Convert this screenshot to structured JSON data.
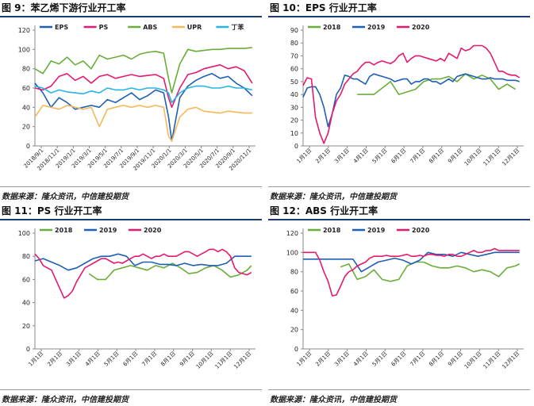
{
  "figures": [
    {
      "title": "图 9：苯乙烯下游行业开工率",
      "source": "数据来源：隆众资讯，中信建投期货"
    },
    {
      "title": "图 10：EPS 行业开工率",
      "source": "数据来源：隆众资讯，中信建投期货"
    },
    {
      "title": "图 11：PS 行业开工率",
      "source": "数据来源：隆众资讯，中信建投期货"
    },
    {
      "title": "图 12：ABS 行业开工率",
      "source": "数据来源：隆众资讯，中信建投期货"
    }
  ],
  "chart_data": [
    {
      "type": "line",
      "ylim": [
        0,
        120
      ],
      "yticks": [
        0,
        20,
        40,
        60,
        80,
        100,
        120
      ],
      "xlim": [
        0,
        27.4
      ],
      "x_ticks": [
        "2018/9/1",
        "2018/11/1",
        "2019/1/1",
        "2019/3/1",
        "2019/5/1",
        "2019/7/1",
        "2019/9/1",
        "2019/11/1",
        "2020/1/1",
        "2020/3/1",
        "2020/5/1",
        "2020/7/1",
        "2020/9/1",
        "2020/11/1"
      ],
      "legend_position": "top",
      "grid": false,
      "series": [
        {
          "name": "EPS",
          "color": "#1f5fb4",
          "x": [
            0,
            1,
            2,
            3,
            4,
            5,
            6,
            7,
            8,
            9,
            10,
            11,
            12,
            13,
            14,
            15,
            16,
            16.6,
            17,
            18,
            19,
            20,
            21,
            22,
            23,
            24,
            25,
            26,
            27
          ],
          "y": [
            65,
            55,
            40,
            50,
            45,
            38,
            40,
            42,
            40,
            48,
            45,
            50,
            55,
            48,
            52,
            58,
            55,
            30,
            5,
            50,
            62,
            68,
            72,
            75,
            70,
            72,
            65,
            60,
            52
          ]
        },
        {
          "name": "PS",
          "color": "#e6196f",
          "x": [
            0,
            1,
            2,
            3,
            4,
            5,
            6,
            7,
            8,
            9,
            10,
            11,
            12,
            13,
            14,
            15,
            16,
            16.6,
            17,
            18,
            19,
            20,
            21,
            22,
            23,
            24,
            25,
            26,
            27
          ],
          "y": [
            60,
            58,
            62,
            72,
            75,
            68,
            72,
            65,
            72,
            74,
            70,
            72,
            74,
            72,
            73,
            74,
            70,
            50,
            40,
            60,
            74,
            76,
            80,
            82,
            84,
            80,
            82,
            78,
            65
          ]
        },
        {
          "name": "ABS",
          "color": "#6aad39",
          "x": [
            0,
            1,
            2,
            3,
            4,
            5,
            6,
            7,
            8,
            9,
            10,
            11,
            12,
            13,
            14,
            15,
            16,
            16.6,
            17,
            18,
            19,
            20,
            21,
            22,
            23,
            24,
            25,
            26,
            27
          ],
          "y": [
            80,
            75,
            88,
            85,
            92,
            84,
            88,
            80,
            94,
            90,
            92,
            94,
            90,
            95,
            97,
            98,
            96,
            70,
            55,
            85,
            100,
            98,
            99,
            100,
            100,
            101,
            101,
            101,
            102
          ]
        },
        {
          "name": "UPR",
          "color": "#f5b85a",
          "x": [
            0,
            1,
            2,
            3,
            4,
            5,
            6,
            7,
            8,
            9,
            10,
            11,
            12,
            13,
            14,
            15,
            16,
            16.6,
            17,
            18,
            19,
            20,
            21,
            22,
            23,
            24,
            25,
            26,
            27
          ],
          "y": [
            30,
            42,
            40,
            38,
            42,
            40,
            38,
            40,
            20,
            38,
            40,
            42,
            40,
            42,
            40,
            42,
            40,
            10,
            5,
            30,
            38,
            40,
            36,
            35,
            34,
            36,
            35,
            34,
            34
          ]
        },
        {
          "name": "丁苯",
          "color": "#26b4e6",
          "x": [
            0,
            1,
            2,
            3,
            4,
            5,
            6,
            7,
            8,
            9,
            10,
            11,
            12,
            13,
            14,
            15,
            16,
            16.6,
            17,
            18,
            19,
            20,
            21,
            22,
            23,
            24,
            25,
            26,
            27
          ],
          "y": [
            62,
            60,
            55,
            58,
            56,
            55,
            54,
            57,
            55,
            60,
            58,
            58,
            60,
            58,
            60,
            60,
            58,
            55,
            45,
            55,
            60,
            62,
            62,
            60,
            60,
            62,
            60,
            60,
            58
          ]
        }
      ]
    },
    {
      "type": "line",
      "ylim": [
        0,
        90
      ],
      "yticks": [
        0,
        10,
        20,
        30,
        40,
        50,
        60,
        70,
        80,
        90
      ],
      "xlim": [
        0,
        53
      ],
      "x_ticks": [
        "1月1日",
        "2月1日",
        "3月1日",
        "4月1日",
        "5月1日",
        "6月1日",
        "7月1日",
        "8月1日",
        "9月1日",
        "10月1日",
        "11月1日",
        "12月1日"
      ],
      "legend_position": "top",
      "grid": false,
      "series": [
        {
          "name": "2018",
          "color": "#6aad39",
          "x": [
            13,
            15,
            17,
            19,
            21,
            23,
            25,
            27,
            29,
            31,
            33,
            35,
            37,
            39,
            41,
            43,
            45,
            47,
            49,
            51
          ],
          "y": [
            40,
            40,
            40,
            45,
            50,
            40,
            42,
            44,
            50,
            52,
            52,
            54,
            50,
            56,
            52,
            55,
            52,
            44,
            48,
            44
          ]
        },
        {
          "name": "2019",
          "color": "#1f5fb4",
          "x": [
            0,
            1,
            2,
            3,
            4,
            5,
            6,
            7,
            8,
            9,
            10,
            11,
            12,
            13,
            14,
            15,
            16,
            17,
            18,
            19,
            20,
            21,
            22,
            23,
            24,
            25,
            26,
            27,
            28,
            29,
            30,
            31,
            32,
            33,
            34,
            35,
            36,
            37,
            38,
            39,
            40,
            41,
            42,
            43,
            44,
            45,
            46,
            47,
            48,
            49,
            50,
            51,
            52
          ],
          "y": [
            38,
            45,
            46,
            46,
            40,
            30,
            15,
            25,
            40,
            45,
            55,
            54,
            52,
            52,
            50,
            48,
            54,
            56,
            55,
            54,
            53,
            52,
            50,
            51,
            52,
            52,
            48,
            50,
            50,
            52,
            52,
            50,
            50,
            48,
            50,
            52,
            50,
            54,
            55,
            56,
            55,
            54,
            53,
            52,
            52,
            53,
            52,
            52,
            52,
            51,
            51,
            51,
            50
          ]
        },
        {
          "name": "2020",
          "color": "#e6196f",
          "x": [
            0,
            1,
            2,
            3,
            4,
            5,
            6,
            7,
            8,
            9,
            10,
            11,
            12,
            13,
            14,
            15,
            16,
            17,
            18,
            19,
            20,
            21,
            22,
            23,
            24,
            25,
            26,
            27,
            28,
            29,
            30,
            31,
            32,
            33,
            34,
            35,
            36,
            37,
            38,
            39,
            40,
            41,
            42,
            43,
            44,
            45,
            46,
            47,
            48,
            49,
            50,
            51,
            52
          ],
          "y": [
            47,
            53,
            52,
            22,
            10,
            2,
            10,
            25,
            35,
            40,
            48,
            52,
            56,
            58,
            62,
            65,
            65,
            63,
            65,
            66,
            65,
            64,
            66,
            70,
            72,
            65,
            68,
            70,
            70,
            69,
            68,
            67,
            66,
            68,
            66,
            72,
            70,
            68,
            76,
            74,
            75,
            78,
            78,
            78,
            76,
            72,
            65,
            58,
            58,
            56,
            55,
            55,
            53
          ]
        }
      ]
    },
    {
      "type": "line",
      "ylim": [
        0,
        100
      ],
      "yticks": [
        0,
        20,
        40,
        60,
        80,
        100
      ],
      "xlim": [
        0,
        53
      ],
      "x_ticks": [
        "1月1日",
        "2月1日",
        "3月1日",
        "4月1日",
        "5月1日",
        "6月1日",
        "7月1日",
        "8月1日",
        "9月1日",
        "10月1日",
        "11月1日",
        "12月1日"
      ],
      "legend_position": "top",
      "grid": false,
      "series": [
        {
          "name": "2018",
          "color": "#6aad39",
          "x": [
            13,
            15,
            17,
            19,
            21,
            23,
            25,
            27,
            29,
            31,
            33,
            35,
            37,
            39,
            41,
            43,
            45,
            47,
            49,
            51,
            52
          ],
          "y": [
            65,
            60,
            60,
            68,
            70,
            72,
            70,
            68,
            72,
            70,
            74,
            70,
            65,
            66,
            70,
            72,
            68,
            62,
            64,
            68,
            72
          ]
        },
        {
          "name": "2019",
          "color": "#1f5fb4",
          "x": [
            0,
            2,
            4,
            6,
            8,
            10,
            12,
            14,
            16,
            18,
            20,
            22,
            24,
            26,
            28,
            30,
            32,
            34,
            36,
            38,
            40,
            42,
            44,
            46,
            48,
            50,
            52
          ],
          "y": [
            76,
            78,
            75,
            72,
            68,
            70,
            74,
            78,
            80,
            80,
            82,
            80,
            72,
            75,
            75,
            73,
            73,
            72,
            74,
            72,
            73,
            72,
            72,
            74,
            80,
            80,
            80
          ]
        },
        {
          "name": "2020",
          "color": "#e6196f",
          "x": [
            0,
            1,
            2,
            3,
            4,
            5,
            6,
            7,
            8,
            9,
            10,
            11,
            12,
            13,
            14,
            15,
            16,
            17,
            18,
            19,
            20,
            21,
            22,
            23,
            24,
            25,
            26,
            27,
            28,
            29,
            30,
            31,
            32,
            33,
            34,
            35,
            36,
            37,
            38,
            39,
            40,
            41,
            42,
            43,
            44,
            45,
            46,
            47,
            48,
            49,
            50,
            51,
            52
          ],
          "y": [
            82,
            78,
            72,
            70,
            68,
            60,
            52,
            44,
            46,
            50,
            58,
            64,
            70,
            72,
            74,
            76,
            78,
            78,
            76,
            74,
            75,
            74,
            76,
            78,
            80,
            80,
            82,
            80,
            78,
            80,
            80,
            82,
            80,
            80,
            80,
            82,
            84,
            84,
            82,
            80,
            82,
            84,
            86,
            86,
            84,
            86,
            84,
            80,
            70,
            66,
            65,
            64,
            66
          ]
        }
      ]
    },
    {
      "type": "line",
      "ylim": [
        0,
        120
      ],
      "yticks": [
        0,
        20,
        40,
        60,
        80,
        100,
        120
      ],
      "xlim": [
        0,
        53
      ],
      "x_ticks": [
        "1月1日",
        "2月1日",
        "3月1日",
        "4月1日",
        "5月1日",
        "6月1日",
        "7月1日",
        "8月1日",
        "9月1日",
        "10月1日",
        "11月1日",
        "12月1日"
      ],
      "legend_position": "top",
      "grid": false,
      "series": [
        {
          "name": "2018",
          "color": "#6aad39",
          "x": [
            9,
            11,
            13,
            15,
            17,
            19,
            21,
            23,
            25,
            27,
            29,
            31,
            33,
            35,
            37,
            39,
            41,
            43,
            45,
            47,
            49,
            51,
            52
          ],
          "y": [
            85,
            88,
            72,
            75,
            82,
            72,
            70,
            72,
            86,
            90,
            90,
            86,
            84,
            84,
            86,
            84,
            80,
            82,
            80,
            75,
            84,
            86,
            88
          ]
        },
        {
          "name": "2019",
          "color": "#1f5fb4",
          "x": [
            0,
            2,
            4,
            6,
            8,
            10,
            12,
            14,
            16,
            18,
            20,
            22,
            24,
            26,
            28,
            30,
            32,
            34,
            36,
            38,
            40,
            42,
            44,
            46,
            48,
            50,
            52
          ],
          "y": [
            93,
            93,
            93,
            93,
            93,
            93,
            93,
            80,
            85,
            90,
            92,
            94,
            92,
            88,
            92,
            100,
            98,
            98,
            96,
            100,
            98,
            96,
            98,
            100,
            100,
            100,
            100
          ]
        },
        {
          "name": "2020",
          "color": "#e6196f",
          "x": [
            0,
            1,
            2,
            3,
            4,
            5,
            6,
            7,
            8,
            9,
            10,
            11,
            12,
            13,
            14,
            15,
            16,
            17,
            18,
            19,
            20,
            21,
            22,
            23,
            24,
            25,
            26,
            27,
            28,
            29,
            30,
            31,
            32,
            33,
            34,
            35,
            36,
            37,
            38,
            39,
            40,
            41,
            42,
            43,
            44,
            45,
            46,
            47,
            48,
            49,
            50,
            51,
            52
          ],
          "y": [
            100,
            100,
            100,
            100,
            92,
            80,
            70,
            55,
            56,
            65,
            75,
            80,
            82,
            86,
            88,
            90,
            94,
            96,
            96,
            96,
            97,
            96,
            96,
            96,
            97,
            98,
            96,
            96,
            97,
            96,
            98,
            98,
            97,
            97,
            96,
            98,
            98,
            96,
            96,
            98,
            100,
            102,
            100,
            100,
            102,
            102,
            104,
            102,
            102,
            102,
            102,
            102,
            102
          ]
        }
      ]
    }
  ]
}
